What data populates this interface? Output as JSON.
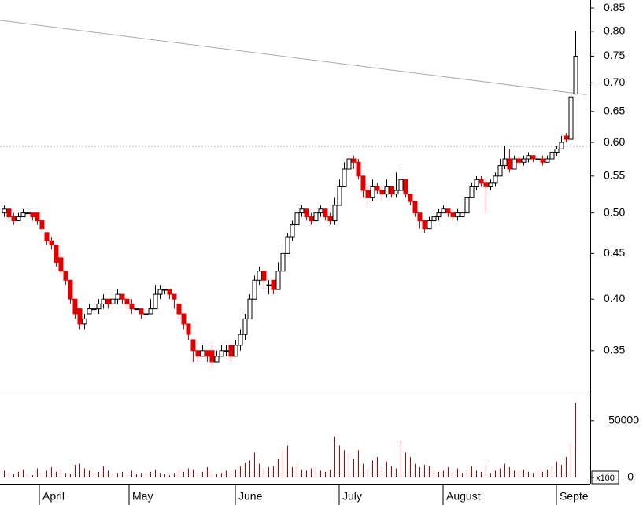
{
  "chart_data": {
    "type": "candlestick",
    "scale": "log",
    "up_color": "#ffffff",
    "down_color": "#e00000",
    "volume_color": "#c00000",
    "ylim": [
      0.3115,
      0.8676
    ],
    "yticks": [
      0.35,
      {
        "value": 0.4,
        "label": "0.40"
      },
      0.45,
      {
        "value": 0.5,
        "label": "0.50"
      },
      0.55,
      {
        "value": 0.6,
        "label": "0.60"
      },
      0.65,
      {
        "value": 0.7,
        "label": "0.70"
      },
      0.75,
      {
        "value": 0.8,
        "label": "0.80"
      },
      0.85
    ],
    "hline": 0.594,
    "trendline": [
      [
        -0.8,
        0.823
      ],
      [
        123.3,
        0.679
      ]
    ],
    "xticks": [
      {
        "value": 7.5,
        "label": "April"
      },
      {
        "value": 26.5,
        "label": "May"
      },
      {
        "value": 49,
        "label": "June"
      },
      {
        "value": 71,
        "label": "July"
      },
      {
        "value": 93,
        "label": "August"
      },
      {
        "value": 117,
        "label": "Septe"
      }
    ],
    "volume_ylim": [
      0,
      72000
    ],
    "volume_yticks": [
      0,
      50000
    ],
    "volume_unit": "x100",
    "ohlc": [
      [
        0.5,
        0.51,
        0.495,
        0.505
      ],
      [
        0.505,
        0.505,
        0.49,
        0.495
      ],
      [
        0.495,
        0.5,
        0.485,
        0.49
      ],
      [
        0.49,
        0.5,
        0.49,
        0.495
      ],
      [
        0.495,
        0.505,
        0.495,
        0.5
      ],
      [
        0.5,
        0.505,
        0.495,
        0.5
      ],
      [
        0.5,
        0.5,
        0.49,
        0.495
      ],
      [
        0.5,
        0.5,
        0.485,
        0.49
      ],
      [
        0.49,
        0.49,
        0.475,
        0.48
      ],
      [
        0.475,
        0.475,
        0.46,
        0.465
      ],
      [
        0.465,
        0.47,
        0.455,
        0.46
      ],
      [
        0.46,
        0.46,
        0.435,
        0.44
      ],
      [
        0.445,
        0.45,
        0.425,
        0.43
      ],
      [
        0.43,
        0.43,
        0.415,
        0.42
      ],
      [
        0.42,
        0.42,
        0.395,
        0.4
      ],
      [
        0.4,
        0.4,
        0.38,
        0.385
      ],
      [
        0.39,
        0.39,
        0.37,
        0.375
      ],
      [
        0.375,
        0.385,
        0.37,
        0.38
      ],
      [
        0.385,
        0.395,
        0.385,
        0.39
      ],
      [
        0.39,
        0.4,
        0.385,
        0.39
      ],
      [
        0.39,
        0.4,
        0.385,
        0.395
      ],
      [
        0.395,
        0.405,
        0.39,
        0.4
      ],
      [
        0.4,
        0.4,
        0.39,
        0.395
      ],
      [
        0.395,
        0.405,
        0.39,
        0.4
      ],
      [
        0.4,
        0.41,
        0.395,
        0.405
      ],
      [
        0.405,
        0.405,
        0.395,
        0.4
      ],
      [
        0.4,
        0.4,
        0.39,
        0.395
      ],
      [
        0.395,
        0.4,
        0.385,
        0.39
      ],
      [
        0.39,
        0.39,
        0.39,
        0.39
      ],
      [
        0.39,
        0.39,
        0.38,
        0.385
      ],
      [
        0.385,
        0.385,
        0.385,
        0.385
      ],
      [
        0.385,
        0.4,
        0.385,
        0.39
      ],
      [
        0.39,
        0.415,
        0.39,
        0.405
      ],
      [
        0.405,
        0.415,
        0.4,
        0.41
      ],
      [
        0.41,
        0.41,
        0.405,
        0.41
      ],
      [
        0.41,
        0.41,
        0.4,
        0.405
      ],
      [
        0.405,
        0.405,
        0.39,
        0.4
      ],
      [
        0.395,
        0.395,
        0.38,
        0.385
      ],
      [
        0.385,
        0.385,
        0.37,
        0.375
      ],
      [
        0.375,
        0.375,
        0.36,
        0.365
      ],
      [
        0.36,
        0.36,
        0.34,
        0.35
      ],
      [
        0.35,
        0.35,
        0.34,
        0.345
      ],
      [
        0.345,
        0.355,
        0.345,
        0.35
      ],
      [
        0.35,
        0.35,
        0.34,
        0.345
      ],
      [
        0.35,
        0.355,
        0.335,
        0.34
      ],
      [
        0.34,
        0.35,
        0.34,
        0.345
      ],
      [
        0.345,
        0.355,
        0.345,
        0.35
      ],
      [
        0.35,
        0.355,
        0.345,
        0.35
      ],
      [
        0.355,
        0.355,
        0.34,
        0.345
      ],
      [
        0.345,
        0.36,
        0.345,
        0.355
      ],
      [
        0.355,
        0.37,
        0.35,
        0.365
      ],
      [
        0.365,
        0.385,
        0.36,
        0.38
      ],
      [
        0.38,
        0.405,
        0.38,
        0.4
      ],
      [
        0.4,
        0.425,
        0.4,
        0.42
      ],
      [
        0.42,
        0.435,
        0.415,
        0.43
      ],
      [
        0.43,
        0.43,
        0.41,
        0.42
      ],
      [
        0.415,
        0.42,
        0.405,
        0.415
      ],
      [
        0.42,
        0.42,
        0.405,
        0.41
      ],
      [
        0.41,
        0.44,
        0.41,
        0.43
      ],
      [
        0.43,
        0.455,
        0.43,
        0.45
      ],
      [
        0.45,
        0.475,
        0.45,
        0.47
      ],
      [
        0.47,
        0.49,
        0.465,
        0.485
      ],
      [
        0.485,
        0.51,
        0.485,
        0.5
      ],
      [
        0.5,
        0.51,
        0.495,
        0.505
      ],
      [
        0.505,
        0.505,
        0.49,
        0.495
      ],
      [
        0.495,
        0.5,
        0.485,
        0.49
      ],
      [
        0.49,
        0.505,
        0.49,
        0.5
      ],
      [
        0.5,
        0.51,
        0.495,
        0.505
      ],
      [
        0.505,
        0.505,
        0.49,
        0.495
      ],
      [
        0.495,
        0.5,
        0.485,
        0.49
      ],
      [
        0.49,
        0.52,
        0.485,
        0.51
      ],
      [
        0.51,
        0.545,
        0.51,
        0.535
      ],
      [
        0.535,
        0.57,
        0.535,
        0.56
      ],
      [
        0.56,
        0.585,
        0.555,
        0.575
      ],
      [
        0.575,
        0.58,
        0.56,
        0.57
      ],
      [
        0.57,
        0.575,
        0.545,
        0.55
      ],
      [
        0.55,
        0.55,
        0.52,
        0.53
      ],
      [
        0.53,
        0.535,
        0.51,
        0.52
      ],
      [
        0.52,
        0.545,
        0.515,
        0.535
      ],
      [
        0.535,
        0.54,
        0.525,
        0.53
      ],
      [
        0.53,
        0.535,
        0.515,
        0.525
      ],
      [
        0.525,
        0.545,
        0.52,
        0.535
      ],
      [
        0.535,
        0.535,
        0.52,
        0.525
      ],
      [
        0.525,
        0.555,
        0.52,
        0.53
      ],
      [
        0.53,
        0.56,
        0.53,
        0.545
      ],
      [
        0.545,
        0.545,
        0.52,
        0.525
      ],
      [
        0.525,
        0.525,
        0.51,
        0.515
      ],
      [
        0.515,
        0.515,
        0.495,
        0.5
      ],
      [
        0.5,
        0.5,
        0.48,
        0.49
      ],
      [
        0.49,
        0.49,
        0.475,
        0.48
      ],
      [
        0.48,
        0.495,
        0.48,
        0.49
      ],
      [
        0.49,
        0.5,
        0.485,
        0.495
      ],
      [
        0.495,
        0.505,
        0.49,
        0.5
      ],
      [
        0.5,
        0.51,
        0.5,
        0.505
      ],
      [
        0.505,
        0.505,
        0.495,
        0.5
      ],
      [
        0.5,
        0.505,
        0.49,
        0.495
      ],
      [
        0.495,
        0.505,
        0.49,
        0.5
      ],
      [
        0.495,
        0.5,
        0.495,
        0.5
      ],
      [
        0.5,
        0.525,
        0.5,
        0.52
      ],
      [
        0.52,
        0.54,
        0.52,
        0.535
      ],
      [
        0.535,
        0.55,
        0.53,
        0.545
      ],
      [
        0.545,
        0.55,
        0.535,
        0.54
      ],
      [
        0.54,
        0.545,
        0.5,
        0.535
      ],
      [
        0.535,
        0.545,
        0.53,
        0.54
      ],
      [
        0.54,
        0.555,
        0.535,
        0.55
      ],
      [
        0.55,
        0.575,
        0.55,
        0.565
      ],
      [
        0.565,
        0.595,
        0.56,
        0.575
      ],
      [
        0.575,
        0.59,
        0.555,
        0.56
      ],
      [
        0.56,
        0.58,
        0.56,
        0.575
      ],
      [
        0.575,
        0.58,
        0.565,
        0.57
      ],
      [
        0.57,
        0.58,
        0.565,
        0.575
      ],
      [
        0.575,
        0.585,
        0.57,
        0.58
      ],
      [
        0.58,
        0.58,
        0.57,
        0.575
      ],
      [
        0.575,
        0.58,
        0.565,
        0.575
      ],
      [
        0.575,
        0.58,
        0.565,
        0.57
      ],
      [
        0.57,
        0.58,
        0.57,
        0.575
      ],
      [
        0.575,
        0.59,
        0.575,
        0.585
      ],
      [
        0.585,
        0.595,
        0.58,
        0.59
      ],
      [
        0.59,
        0.61,
        0.59,
        0.6
      ],
      [
        0.61,
        0.615,
        0.6,
        0.605
      ],
      [
        0.605,
        0.69,
        0.6,
        0.675
      ],
      [
        0.68,
        0.8,
        0.68,
        0.75
      ]
    ],
    "volume": [
      6000,
      4000,
      3000,
      5000,
      7000,
      3000,
      2000,
      8000,
      4000,
      6000,
      9000,
      5000,
      7000,
      4000,
      3000,
      11000,
      12000,
      8000,
      6000,
      4000,
      5000,
      10000,
      6000,
      3000,
      4000,
      5000,
      2000,
      6000,
      3000,
      4000,
      3000,
      5000,
      7000,
      4000,
      3000,
      2000,
      4000,
      6000,
      5000,
      8000,
      7000,
      4000,
      5000,
      9000,
      5000,
      3000,
      4000,
      6000,
      5000,
      7000,
      10000,
      13000,
      15000,
      22000,
      12000,
      8000,
      9000,
      10000,
      16000,
      24000,
      28000,
      9000,
      12000,
      7000,
      6000,
      8000,
      9000,
      6000,
      5000,
      7000,
      36000,
      28000,
      24000,
      21000,
      16000,
      24000,
      12000,
      7000,
      15000,
      18000,
      9000,
      14000,
      10000,
      8000,
      32000,
      22000,
      18000,
      12000,
      9000,
      11000,
      10000,
      7000,
      5000,
      6000,
      9000,
      5000,
      8000,
      4000,
      7000,
      10000,
      6000,
      5000,
      11000,
      4000,
      6000,
      8000,
      12000,
      9000,
      6000,
      5000,
      7000,
      5000,
      4000,
      6000,
      5000,
      7000,
      10000,
      14000,
      11000,
      18000,
      30000,
      66000
    ]
  }
}
